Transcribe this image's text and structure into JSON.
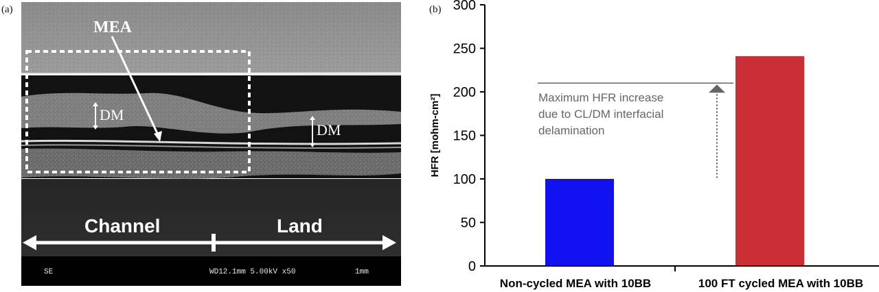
{
  "panel_a": {
    "label": "(a)",
    "labels": {
      "mea": "MEA",
      "dm_left": "DM",
      "dm_right": "DM",
      "channel": "Channel",
      "land": "Land"
    },
    "footer": {
      "mode": "SE",
      "settings": "WD12.1mm 5.00kV x50",
      "scale": "1mm"
    }
  },
  "panel_b": {
    "label": "(b)"
  },
  "chart_data": {
    "type": "bar",
    "categories": [
      "Non-cycled MEA with 10BB",
      "100 FT cycled MEA with 10BB"
    ],
    "values": [
      100,
      241
    ],
    "colors": [
      "#1010f0",
      "#cc2e36"
    ],
    "ylabel": "HFR [mohm-cm²]",
    "ylim": [
      0,
      300
    ],
    "yticks": [
      0,
      50,
      100,
      150,
      200,
      250,
      300
    ],
    "grid": false,
    "reference_line": 210,
    "annotation": {
      "lines": [
        "Maximum HFR increase",
        "due to CL/DM interfacial",
        "delamination"
      ],
      "arrow_from": 98,
      "arrow_to": 210
    }
  }
}
